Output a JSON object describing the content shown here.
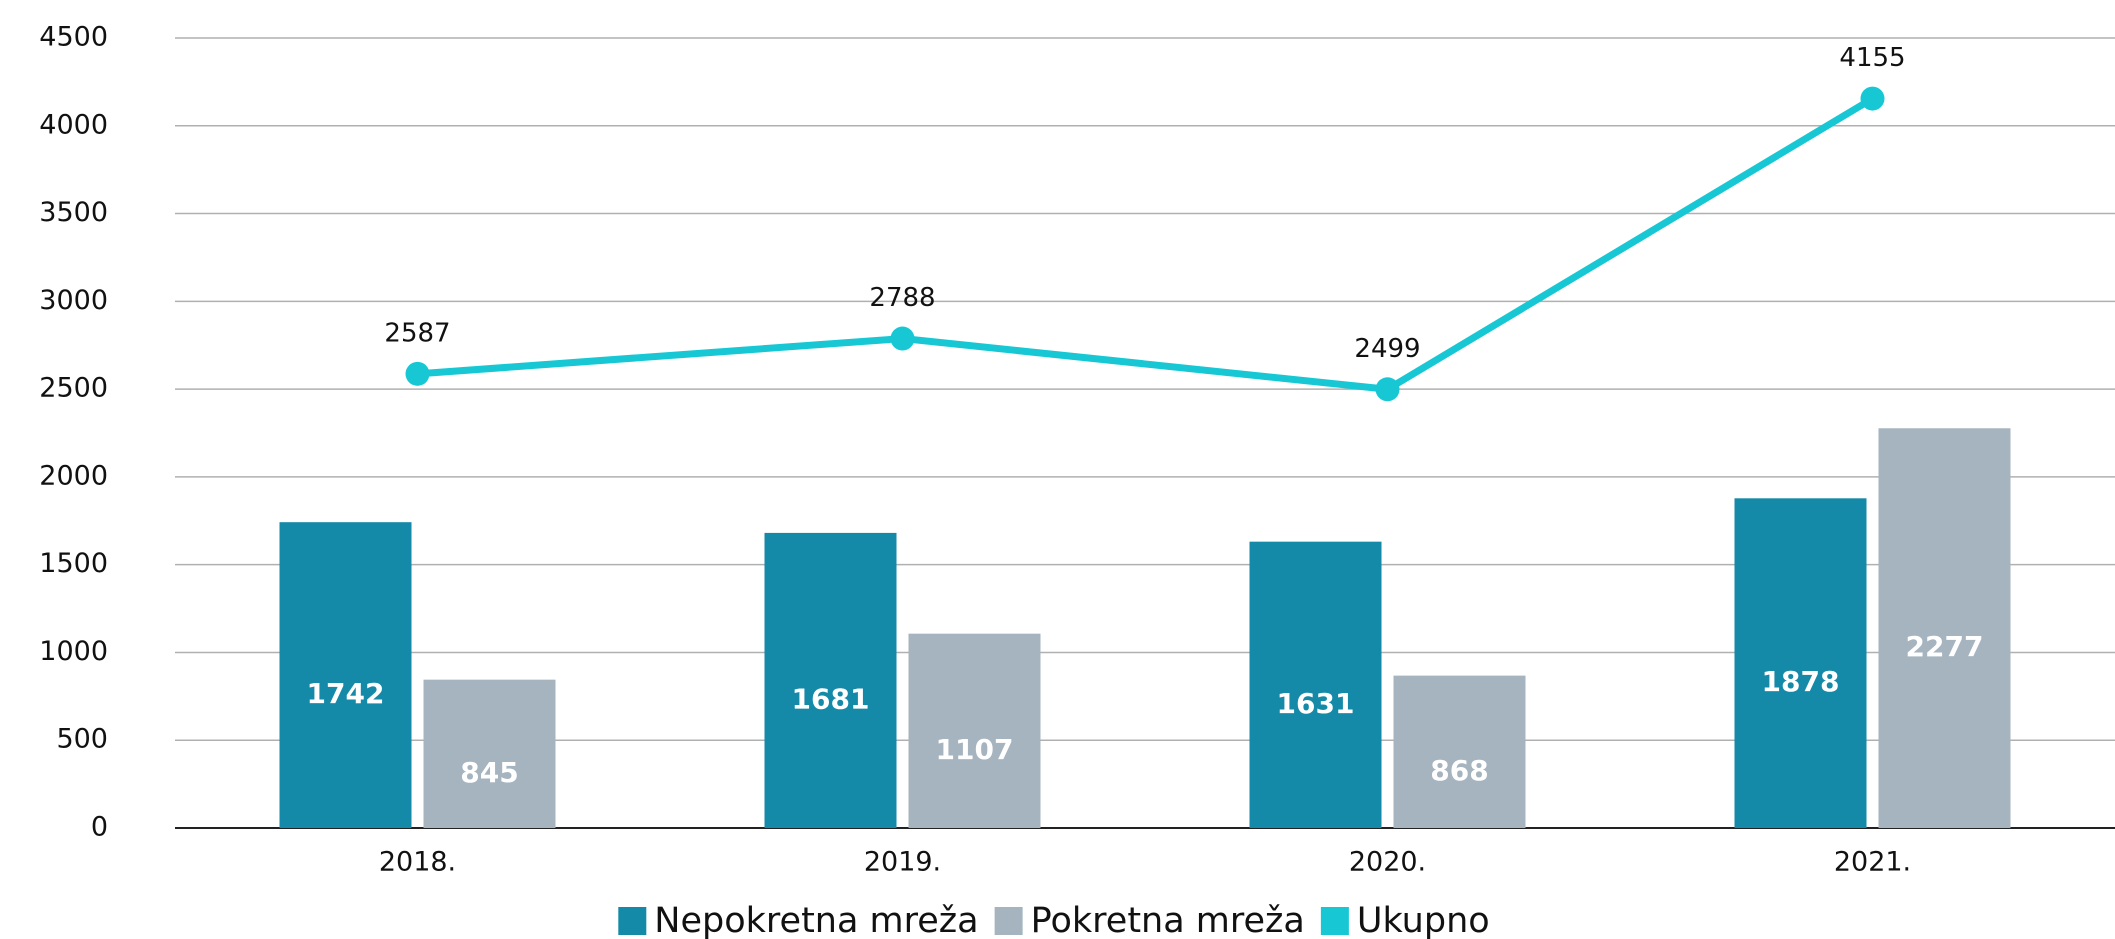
{
  "chart_data": {
    "type": "bar",
    "categories": [
      "2018.",
      "2019.",
      "2020.",
      "2021."
    ],
    "series": [
      {
        "name": "Nepokretna mreža",
        "type": "bar",
        "color": "#1589a8",
        "values": [
          1742,
          1681,
          1631,
          1878
        ]
      },
      {
        "name": "Pokretna mreža",
        "type": "bar",
        "color": "#a6b4c0",
        "values": [
          845,
          1107,
          868,
          2277
        ]
      },
      {
        "name": "Ukupno",
        "type": "line",
        "color": "#17c8d4",
        "values": [
          2587,
          2788,
          2499,
          4155
        ]
      }
    ],
    "ylim": [
      0,
      4500
    ],
    "yticks": [
      0,
      500,
      1000,
      1500,
      2000,
      2500,
      3000,
      3500,
      4000,
      4500
    ],
    "grid": true,
    "legend": "bottom"
  }
}
